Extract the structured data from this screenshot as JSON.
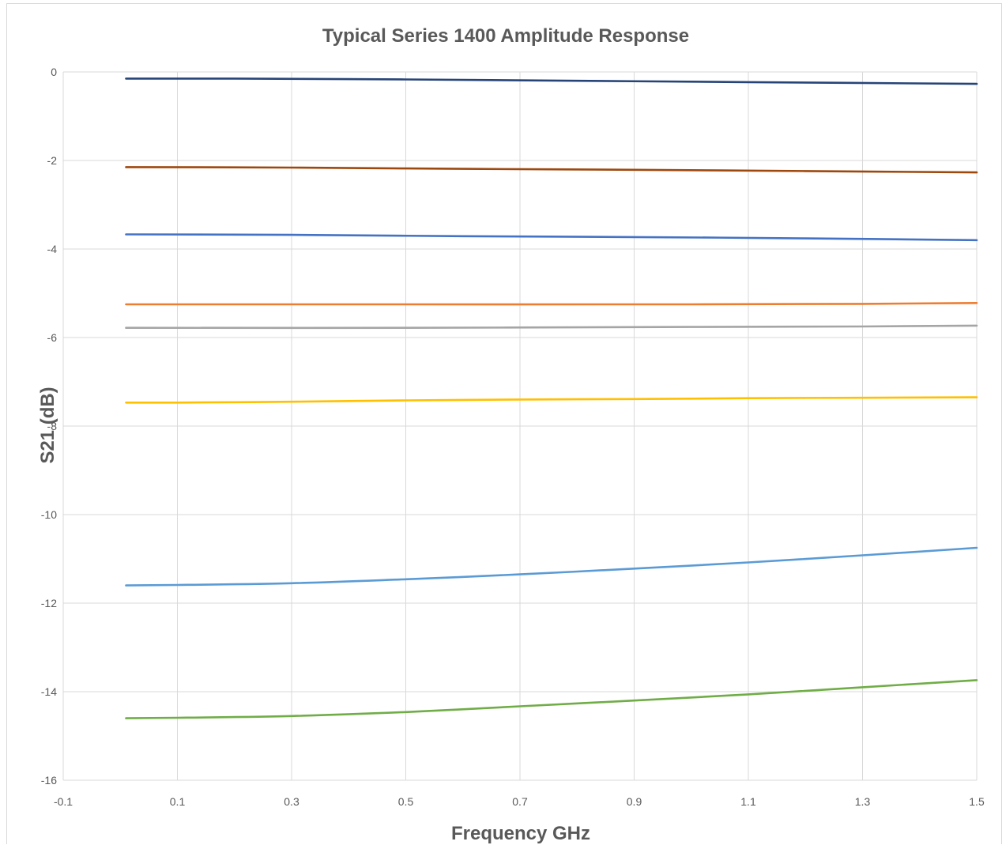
{
  "chart_data": {
    "type": "line",
    "title": "Typical Series 1400 Amplitude Response",
    "xlabel": "Frequency GHz",
    "ylabel": "S21 (dB)",
    "xlim": [
      -0.1,
      1.5
    ],
    "ylim": [
      -16,
      0
    ],
    "xticks": [
      -0.1,
      0.1,
      0.3,
      0.5,
      0.7,
      0.9,
      1.1,
      1.3,
      1.5
    ],
    "yticks": [
      0,
      -2,
      -4,
      -6,
      -8,
      -10,
      -12,
      -14,
      -16
    ],
    "xtick_labels": [
      "-0.1",
      "0.1",
      "0.3",
      "0.5",
      "0.7",
      "0.9",
      "1.1",
      "1.3",
      "1.5"
    ],
    "ytick_labels": [
      "0",
      "-2",
      "-4",
      "-6",
      "-8",
      "-10",
      "-12",
      "-14",
      "-16"
    ],
    "grid": true,
    "legend": "none",
    "series": [
      {
        "color": "#264478",
        "x": [
          0.01,
          0.2,
          0.5,
          0.8,
          1.1,
          1.5
        ],
        "y": [
          -0.15,
          -0.15,
          -0.17,
          -0.2,
          -0.23,
          -0.27
        ]
      },
      {
        "color": "#9e480e",
        "x": [
          0.01,
          0.3,
          0.6,
          0.9,
          1.2,
          1.5
        ],
        "y": [
          -2.15,
          -2.16,
          -2.19,
          -2.21,
          -2.24,
          -2.27
        ]
      },
      {
        "color": "#4472c4",
        "x": [
          0.01,
          0.3,
          0.6,
          0.9,
          1.2,
          1.5
        ],
        "y": [
          -3.67,
          -3.68,
          -3.71,
          -3.73,
          -3.76,
          -3.8
        ]
      },
      {
        "color": "#ed7d31",
        "x": [
          0.01,
          0.5,
          1.0,
          1.3,
          1.5
        ],
        "y": [
          -5.25,
          -5.25,
          -5.25,
          -5.24,
          -5.22
        ]
      },
      {
        "color": "#a5a5a5",
        "x": [
          0.01,
          0.5,
          1.0,
          1.3,
          1.5
        ],
        "y": [
          -5.78,
          -5.78,
          -5.76,
          -5.75,
          -5.73
        ]
      },
      {
        "color": "#ffc000",
        "x": [
          0.01,
          0.1,
          0.3,
          0.5,
          0.7,
          0.9,
          1.1,
          1.3,
          1.5
        ],
        "y": [
          -7.47,
          -7.47,
          -7.45,
          -7.42,
          -7.4,
          -7.39,
          -7.37,
          -7.36,
          -7.35
        ]
      },
      {
        "color": "#5b9bd5",
        "x": [
          0.01,
          0.1,
          0.3,
          0.5,
          0.7,
          0.9,
          1.1,
          1.3,
          1.5
        ],
        "y": [
          -11.6,
          -11.59,
          -11.55,
          -11.46,
          -11.35,
          -11.22,
          -11.08,
          -10.92,
          -10.75
        ]
      },
      {
        "color": "#70ad47",
        "x": [
          0.01,
          0.1,
          0.3,
          0.5,
          0.7,
          0.9,
          1.1,
          1.3,
          1.5
        ],
        "y": [
          -14.6,
          -14.59,
          -14.55,
          -14.46,
          -14.33,
          -14.2,
          -14.06,
          -13.9,
          -13.74
        ]
      }
    ]
  }
}
